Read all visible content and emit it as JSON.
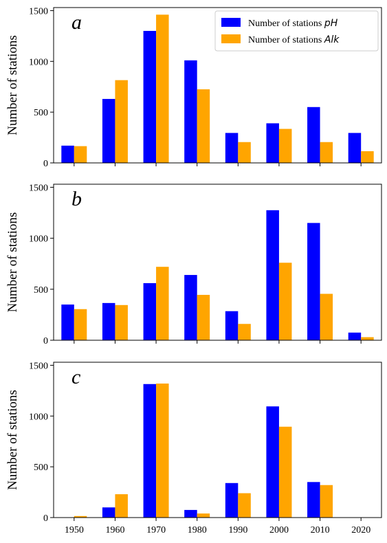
{
  "chart_data": [
    {
      "type": "bar",
      "panel_label": "a",
      "categories": [
        "1950",
        "1960",
        "1970",
        "1980",
        "1990",
        "2000",
        "2010",
        "2020"
      ],
      "series": [
        {
          "name": "Number of stations pH",
          "color": "#0000ff",
          "values": [
            170,
            630,
            1300,
            1010,
            295,
            390,
            550,
            295
          ]
        },
        {
          "name": "Number of stations Alk",
          "color": "#ffa500",
          "values": [
            165,
            815,
            1460,
            725,
            205,
            335,
            205,
            115
          ]
        }
      ],
      "ylabel": "Number of stations",
      "ylim": [
        0,
        1530
      ],
      "yticks": [
        "0",
        "500",
        "1000",
        "1500"
      ],
      "legend": "top-right"
    },
    {
      "type": "bar",
      "panel_label": "b",
      "categories": [
        "1950",
        "1960",
        "1970",
        "1980",
        "1990",
        "2000",
        "2010",
        "2020"
      ],
      "series": [
        {
          "name": "Number of stations pH",
          "color": "#0000ff",
          "values": [
            350,
            365,
            560,
            640,
            285,
            1275,
            1150,
            75
          ]
        },
        {
          "name": "Number of stations Alk",
          "color": "#ffa500",
          "values": [
            305,
            345,
            720,
            445,
            160,
            760,
            455,
            30
          ]
        }
      ],
      "ylabel": "Number of stations",
      "ylim": [
        0,
        1530
      ],
      "yticks": [
        "0",
        "500",
        "1000",
        "1500"
      ],
      "legend": "none"
    },
    {
      "type": "bar",
      "panel_label": "c",
      "categories": [
        "1950",
        "1960",
        "1970",
        "1980",
        "1990",
        "2000",
        "2010",
        "2020"
      ],
      "series": [
        {
          "name": "Number of stations pH",
          "color": "#0000ff",
          "values": [
            0,
            100,
            1315,
            75,
            340,
            1095,
            350,
            0
          ]
        },
        {
          "name": "Number of stations Alk",
          "color": "#ffa500",
          "values": [
            15,
            230,
            1320,
            40,
            240,
            895,
            320,
            0
          ]
        }
      ],
      "ylabel": "Number of stations",
      "ylim": [
        0,
        1530
      ],
      "yticks": [
        "0",
        "500",
        "1000",
        "1500"
      ],
      "xticks": [
        "1950",
        "1960",
        "1970",
        "1980",
        "1990",
        "2000",
        "2010",
        "2020"
      ],
      "legend": "none"
    }
  ],
  "legend": {
    "items": [
      {
        "prefix": "Number of stations ",
        "italic": "pH",
        "color": "#0000ff"
      },
      {
        "prefix": "Number of stations ",
        "italic": "Alk",
        "color": "#ffa500"
      }
    ]
  }
}
